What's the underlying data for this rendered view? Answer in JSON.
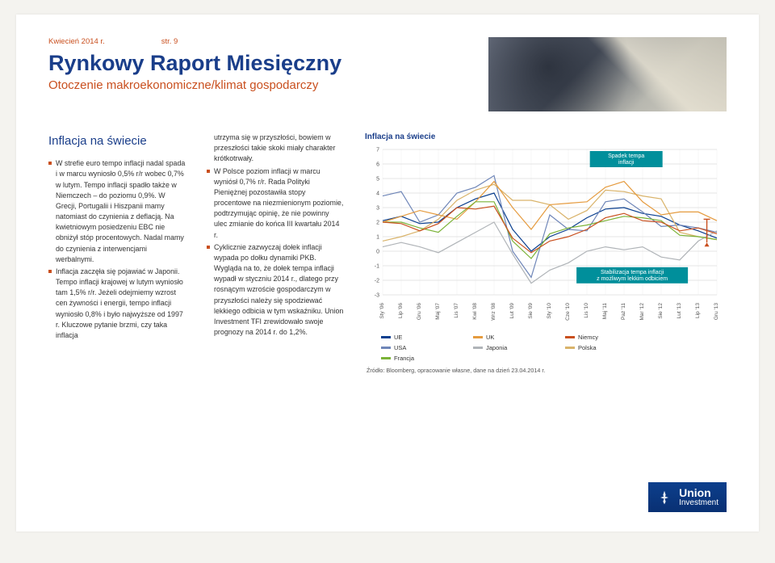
{
  "header": {
    "date": "Kwiecień 2014 r.",
    "page": "str. 9",
    "title": "Rynkowy Raport Miesięczny",
    "subtitle": "Otoczenie makroekonomiczne/klimat gospodarczy"
  },
  "article": {
    "section_title": "Inflacja na świecie",
    "col1_bullets": [
      "W strefie euro tempo inflacji nadal spada i w marcu wyniosło 0,5% r/r wobec 0,7% w lutym. Tempo inflacji spadło także w Niemczech – do poziomu 0,9%. W Grecji, Portugalii i Hiszpanii mamy natomiast do czynienia z deflacją. Na kwietniowym posiedzeniu EBC nie obniżył stóp procentowych. Nadal mamy do czynienia z interwencjami werbalnymi.",
      "Inflacja zaczęła się pojawiać w Japonii. Tempo inflacji krajowej w lutym wyniosło tam 1,5% r/r. Jeżeli odejmiemy wzrost cen żywności i energii, tempo inflacji wyniosło 0,8% i było najwyższe od 1997 r. Kluczowe pytanie brzmi, czy taka inflacja"
    ],
    "col2_plain": "utrzyma się w przyszłości, bowiem w przeszłości takie skoki miały charakter krótkotrwały.",
    "col2_bullets": [
      "W Polsce poziom inflacji w marcu wyniósł 0,7% r/r. Rada Polityki Pieniężnej pozostawiła stopy procentowe na niezmienionym poziomie, podtrzymując opinię, że nie powinny ulec zmianie do końca III kwartału 2014 r.",
      "Cyklicznie zazwyczaj dołek inflacji wypada po dołku dynamiki PKB. Wygląda na to, że dołek tempa inflacji wypadł w styczniu 2014 r., dlatego przy rosnącym wzroście gospodarczym w przyszłości należy się spodziewać lekkiego odbicia w tym wskaźniku. Union Investment TFI zrewidowało swoje prognozy na 2014 r. do 1,2%."
    ]
  },
  "chart": {
    "title": "Inflacja na świecie",
    "ylim": [
      -3,
      7
    ],
    "ytick_step": 1,
    "x_labels": [
      "Sty '06",
      "Lip '06",
      "Gru '06",
      "Maj '07",
      "Lis '07",
      "Kwi '08",
      "Wrz '08",
      "Lut '09",
      "Sie '09",
      "Sty '10",
      "Cze '10",
      "Lis '10",
      "Maj '11",
      "Paź '11",
      "Mar '12",
      "Sie '12",
      "Lut '13",
      "Lip '13",
      "Gru '13"
    ],
    "annotations": {
      "top": {
        "text1": "Spadek tempa",
        "text2": "inflacji",
        "bg": "#008f9b"
      },
      "bottom": {
        "text1": "Stabilizacja tempa inflacji",
        "text2": "z możliwym lekkim odbiciem",
        "bg": "#008f9b"
      }
    },
    "arrow_color": "#c94f1e",
    "grid_color": "#cccccc",
    "background": "#ffffff",
    "series": [
      {
        "name": "UE",
        "color": "#0a3f8f",
        "values": [
          2.1,
          2.4,
          1.9,
          2.0,
          3.0,
          3.6,
          4.0,
          1.5,
          0.0,
          1.0,
          1.5,
          2.3,
          2.9,
          3.0,
          2.6,
          2.4,
          1.8,
          1.4,
          0.9
        ]
      },
      {
        "name": "USA",
        "color": "#6f86b8",
        "values": [
          3.8,
          4.1,
          2.0,
          2.5,
          4.0,
          4.4,
          5.2,
          0.0,
          -1.8,
          2.5,
          1.5,
          1.4,
          3.4,
          3.6,
          2.7,
          1.7,
          1.8,
          1.6,
          1.3
        ]
      },
      {
        "name": "Polska",
        "color": "#d9b36a",
        "values": [
          0.7,
          1.0,
          1.4,
          2.2,
          3.5,
          4.2,
          4.6,
          3.5,
          3.5,
          3.2,
          2.2,
          2.8,
          4.2,
          4.1,
          3.8,
          3.6,
          1.3,
          1.0,
          0.8
        ]
      },
      {
        "name": "UK",
        "color": "#e59b3f",
        "values": [
          2.0,
          2.4,
          2.8,
          2.5,
          2.2,
          3.4,
          4.8,
          3.0,
          1.5,
          3.2,
          3.3,
          3.4,
          4.4,
          4.8,
          3.4,
          2.5,
          2.7,
          2.7,
          2.1
        ]
      },
      {
        "name": "Japonia",
        "color": "#b0b4b8",
        "values": [
          0.3,
          0.6,
          0.3,
          -0.1,
          0.6,
          1.3,
          2.0,
          -0.2,
          -2.2,
          -1.3,
          -0.8,
          0.0,
          0.3,
          0.1,
          0.3,
          -0.4,
          -0.6,
          0.7,
          1.4
        ]
      },
      {
        "name": "Francja",
        "color": "#7bb338",
        "values": [
          2.0,
          2.0,
          1.6,
          1.3,
          2.4,
          3.4,
          3.4,
          0.7,
          -0.5,
          1.2,
          1.6,
          1.8,
          2.1,
          2.4,
          2.3,
          2.1,
          1.1,
          1.0,
          0.8
        ]
      },
      {
        "name": "Niemcy",
        "color": "#c94f1e",
        "values": [
          2.0,
          1.9,
          1.4,
          1.9,
          3.0,
          2.9,
          3.1,
          0.9,
          -0.1,
          0.7,
          1.0,
          1.5,
          2.3,
          2.6,
          2.1,
          2.0,
          1.4,
          1.6,
          1.2
        ]
      }
    ],
    "legend": [
      {
        "label": "UE",
        "color": "#0a3f8f"
      },
      {
        "label": "UK",
        "color": "#e59b3f"
      },
      {
        "label": "Niemcy",
        "color": "#c94f1e"
      },
      {
        "label": "USA",
        "color": "#6f86b8"
      },
      {
        "label": "Japonia",
        "color": "#b0b4b8"
      },
      {
        "label": "Polska",
        "color": "#d9b36a"
      },
      {
        "label": "Francja",
        "color": "#7bb338"
      }
    ],
    "source": "Źródło: Bloomberg, opracowanie własne, dane na dzień 23.04.2014 r."
  },
  "logo": {
    "line1": "Union",
    "line2": "Investment"
  }
}
